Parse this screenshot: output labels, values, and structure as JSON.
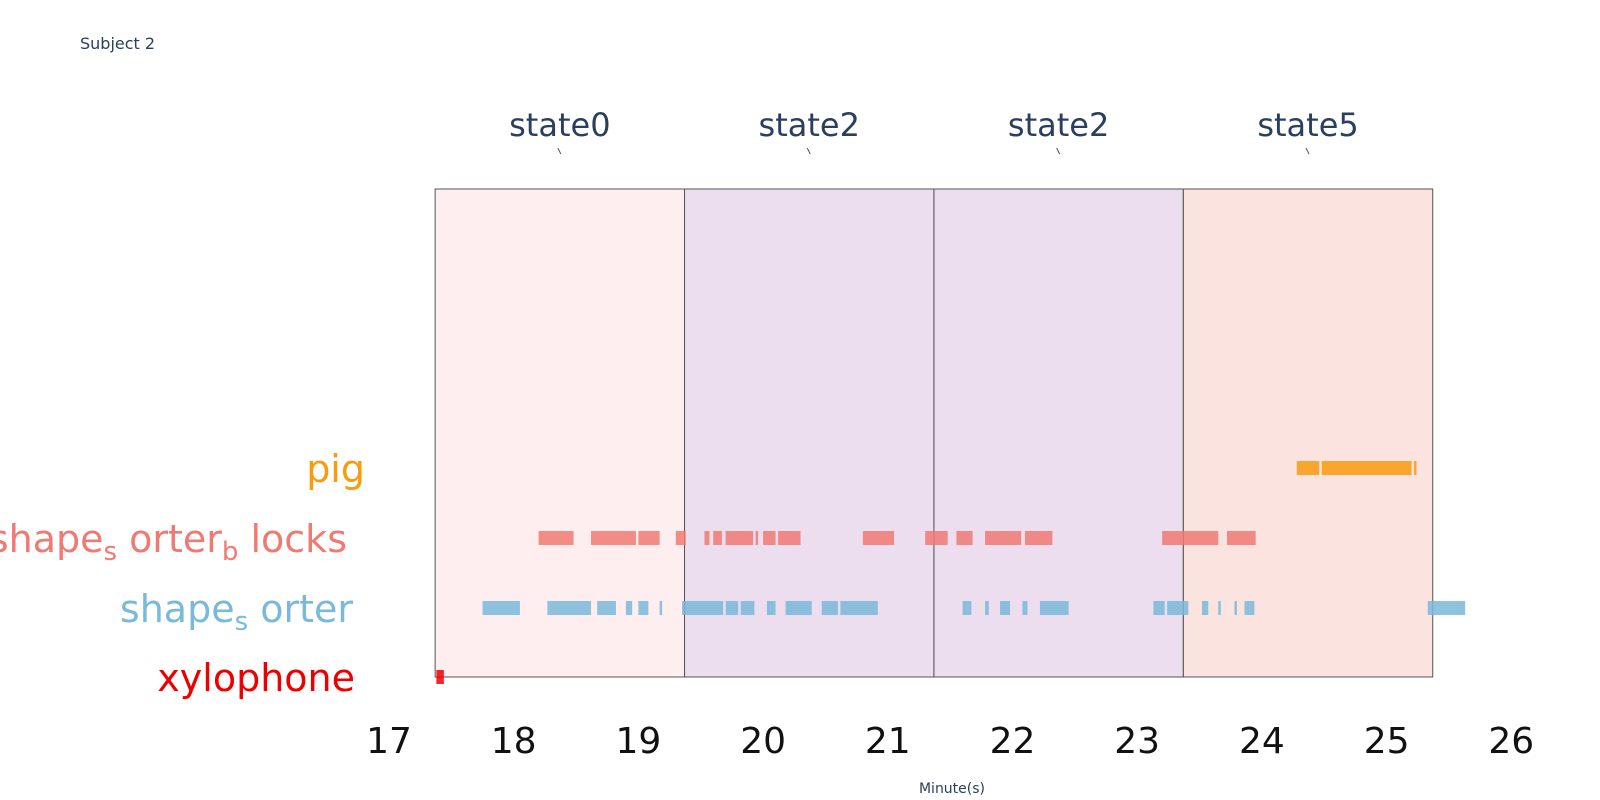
{
  "subject_title": "Subject 2",
  "chart_data": {
    "type": "timeline",
    "xlabel": "Minute(s)",
    "xlim": [
      17,
      26
    ],
    "xticks": [
      "17",
      "18",
      "19",
      "20",
      "21",
      "22",
      "23",
      "24",
      "25",
      "26"
    ],
    "states": [
      {
        "label": "state0",
        "start": 17.37,
        "end": 19.37,
        "color": "#fde8ea"
      },
      {
        "label": "state2",
        "start": 19.37,
        "end": 21.37,
        "color": "#e6d3ea"
      },
      {
        "label": "state2",
        "start": 21.37,
        "end": 23.37,
        "color": "#e6d3ea"
      },
      {
        "label": "state5",
        "start": 23.37,
        "end": 25.37,
        "color": "#fadbd5"
      }
    ],
    "rows": [
      {
        "label": "pig",
        "label_parts": [
          {
            "t": "pig"
          }
        ],
        "color": "#f89b0f",
        "segments": [
          [
            24.28,
            24.46
          ],
          [
            24.48,
            25.2
          ],
          [
            25.22,
            25.24
          ]
        ]
      },
      {
        "label": "shape_sorter_blocks",
        "label_parts": [
          {
            "t": "shape"
          },
          {
            "t": "s",
            "sub": true
          },
          {
            "t": " orter"
          },
          {
            "t": "b",
            "sub": true
          },
          {
            "t": " locks"
          }
        ],
        "color": "#f07a72",
        "segments": [
          [
            18.2,
            18.48
          ],
          [
            18.62,
            18.98
          ],
          [
            19.0,
            19.17
          ],
          [
            19.3,
            19.38
          ],
          [
            19.53,
            19.57
          ],
          [
            19.6,
            19.67
          ],
          [
            19.7,
            19.92
          ],
          [
            19.94,
            19.96
          ],
          [
            20.0,
            20.1
          ],
          [
            20.12,
            20.3
          ],
          [
            20.8,
            21.05
          ],
          [
            21.3,
            21.48
          ],
          [
            21.55,
            21.68
          ],
          [
            21.78,
            22.07
          ],
          [
            22.1,
            22.32
          ],
          [
            23.2,
            23.65
          ],
          [
            23.72,
            23.95
          ]
        ]
      },
      {
        "label": "shape_sorter",
        "label_parts": [
          {
            "t": "shape"
          },
          {
            "t": "s",
            "sub": true
          },
          {
            "t": " orter"
          }
        ],
        "color": "#7ab9d9",
        "segments": [
          [
            17.75,
            18.05
          ],
          [
            18.27,
            18.62
          ],
          [
            18.67,
            18.82
          ],
          [
            18.9,
            18.95
          ],
          [
            19.0,
            19.08
          ],
          [
            19.17,
            19.19
          ],
          [
            19.35,
            19.68
          ],
          [
            19.7,
            19.8
          ],
          [
            19.82,
            19.93
          ],
          [
            20.03,
            20.1
          ],
          [
            20.18,
            20.39
          ],
          [
            20.47,
            20.6
          ],
          [
            20.62,
            20.92
          ],
          [
            21.6,
            21.67
          ],
          [
            21.78,
            21.81
          ],
          [
            21.9,
            21.98
          ],
          [
            22.08,
            22.12
          ],
          [
            22.22,
            22.45
          ],
          [
            23.13,
            23.22
          ],
          [
            23.24,
            23.41
          ],
          [
            23.52,
            23.57
          ],
          [
            23.65,
            23.67
          ],
          [
            23.78,
            23.8
          ],
          [
            23.86,
            23.94
          ],
          [
            25.33,
            25.63
          ]
        ]
      },
      {
        "label": "xylophone",
        "label_parts": [
          {
            "t": "xylophone"
          }
        ],
        "color": "#ee0000",
        "segments": [
          [
            17.38,
            17.44
          ]
        ]
      }
    ]
  }
}
